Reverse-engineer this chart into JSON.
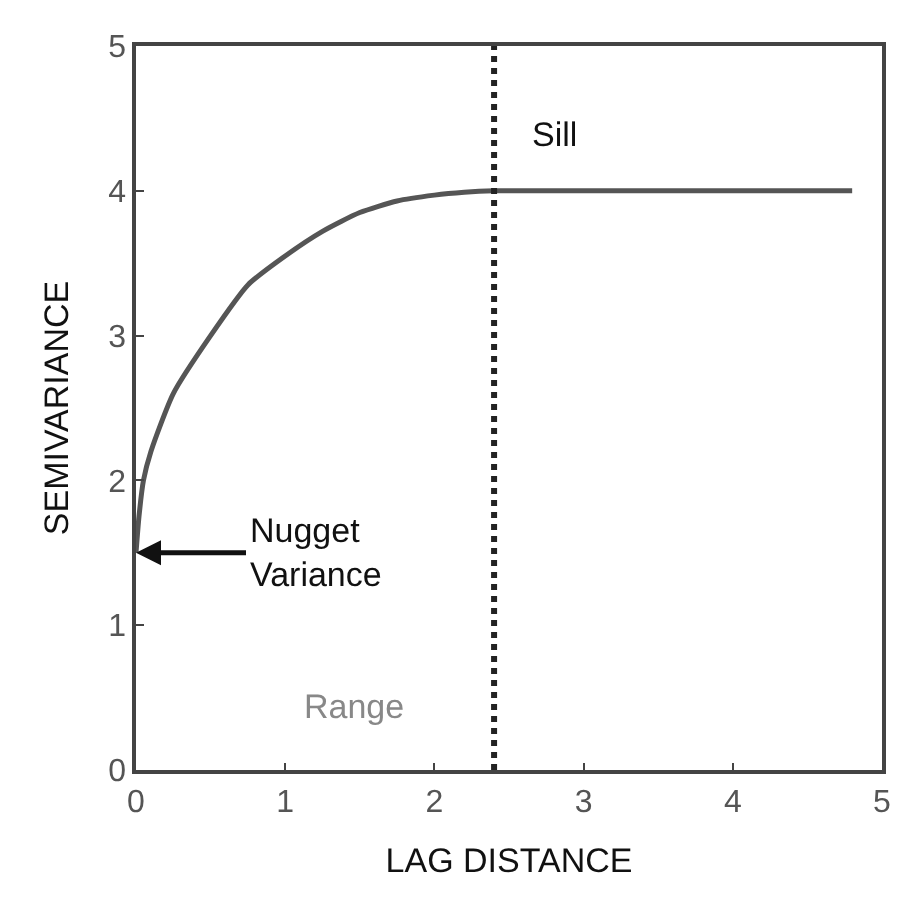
{
  "chart_data": {
    "type": "line",
    "xlabel": "LAG DISTANCE",
    "ylabel": "SEMIVARIANCE",
    "x": [
      0,
      0.02,
      0.05,
      0.1,
      0.25,
      0.5,
      0.75,
      1.0,
      1.25,
      1.5,
      1.75,
      2.0,
      2.2,
      2.4,
      3.0,
      4.0,
      4.8
    ],
    "series": [
      {
        "color": "#555555",
        "values": [
          1.5,
          1.75,
          2.0,
          2.2,
          2.6,
          3.0,
          3.35,
          3.55,
          3.72,
          3.85,
          3.93,
          3.97,
          3.99,
          4.0,
          4.0,
          4.0,
          4.0
        ]
      }
    ],
    "xlim": [
      0,
      5
    ],
    "ylim": [
      0,
      5
    ],
    "xticks": [
      0,
      1,
      2,
      3,
      4,
      5
    ],
    "yticks": [
      0,
      1,
      2,
      3,
      4,
      5
    ],
    "ref_lines": [
      {
        "axis": "x",
        "value": 2.4,
        "color": "#222222",
        "line_style": "dotted"
      }
    ],
    "annotations": [
      {
        "text": "Sill",
        "x": 2.4,
        "y": 4
      },
      {
        "text": "Nugget\nVariance",
        "x": 0,
        "y": 1.5
      },
      "Range"
    ],
    "marker": "none",
    "line_style": "solid"
  }
}
